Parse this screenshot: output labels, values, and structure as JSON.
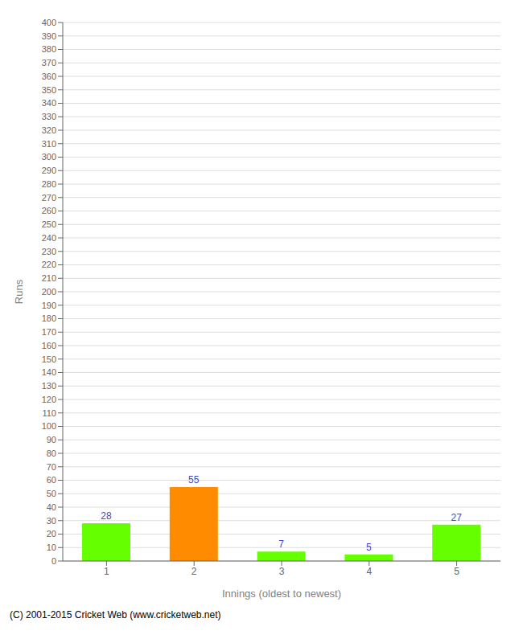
{
  "chart_data": {
    "type": "bar",
    "categories": [
      "1",
      "2",
      "3",
      "4",
      "5"
    ],
    "values": [
      28,
      55,
      7,
      5,
      27
    ],
    "colors": [
      "#66ff00",
      "#ff8c00",
      "#66ff00",
      "#66ff00",
      "#66ff00"
    ],
    "xlabel": "Innings (oldest to newest)",
    "ylabel": "Runs",
    "ylim": [
      0,
      400
    ],
    "yticks": [
      0,
      10,
      20,
      30,
      40,
      50,
      60,
      70,
      80,
      90,
      100,
      110,
      120,
      130,
      140,
      150,
      160,
      170,
      180,
      190,
      200,
      210,
      220,
      230,
      240,
      250,
      260,
      270,
      280,
      290,
      300,
      310,
      320,
      330,
      340,
      350,
      360,
      370,
      380,
      390,
      400
    ],
    "grid": true,
    "data_labels": true,
    "annotations": [
      "(C) 2001-2015 Cricket Web (www.cricketweb.net)"
    ]
  }
}
